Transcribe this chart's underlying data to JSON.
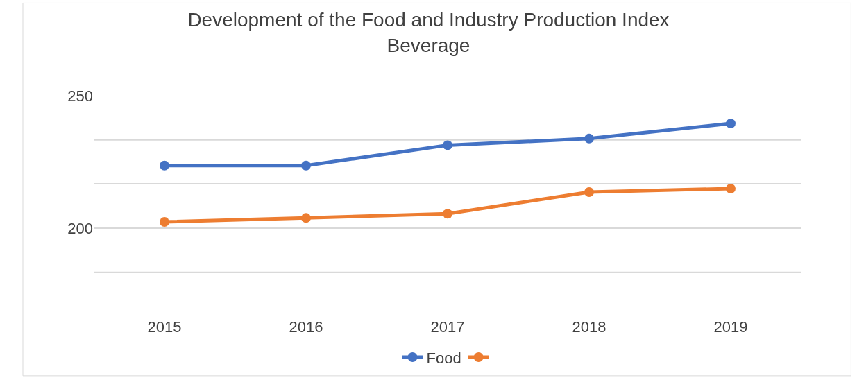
{
  "chart_data": {
    "type": "line",
    "title": "Development of the Food and Industry Production Index\nBeverage",
    "categories": [
      "2015",
      "2016",
      "2017",
      "2018",
      "2019"
    ],
    "series": [
      {
        "name": "Food",
        "color": "#4472c4",
        "values": [
          223.6,
          223.6,
          231.3,
          233.8,
          239.5
        ]
      },
      {
        "color": "#ed7d31",
        "values": [
          202.3,
          203.8,
          205.4,
          213.6,
          214.9
        ]
      }
    ],
    "ylim": [
      166.7,
      250
    ],
    "yticks": [
      {
        "value": 166.7,
        "label": null
      },
      {
        "value": 183.3,
        "label": null
      },
      200,
      {
        "value": 216.7,
        "label": null
      },
      {
        "value": 233.3,
        "label": null
      },
      250
    ],
    "grid": "y",
    "legend": "bottom",
    "marker": "circle",
    "line_style": "solid"
  }
}
